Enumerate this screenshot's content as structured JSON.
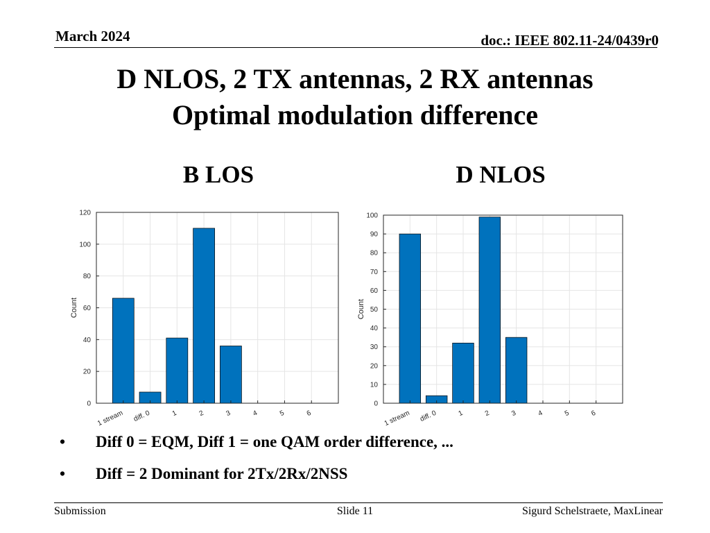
{
  "header": {
    "date": "March 2024",
    "doc": "doc.: IEEE 802.11-24/0439r0"
  },
  "title": {
    "line1": "D NLOS, 2 TX antennas, 2 RX antennas",
    "line2": "Optimal modulation difference"
  },
  "colors": {
    "bar": "#0072BD",
    "grid": "#e5e5e5",
    "axis": "#262626",
    "tick_text": "#262626"
  },
  "chart_data": [
    {
      "type": "bar",
      "title": "B LOS",
      "categories": [
        "1 stream",
        "diff. 0",
        "1",
        "2",
        "3",
        "4",
        "5",
        "6"
      ],
      "values": [
        66,
        7,
        41,
        110,
        36,
        0,
        0,
        0
      ],
      "ylabel": "Count",
      "xlabel": "",
      "ylim": [
        0,
        120
      ],
      "yticks": [
        0,
        20,
        40,
        60,
        80,
        100,
        120
      ],
      "grid": true
    },
    {
      "type": "bar",
      "title": "D NLOS",
      "categories": [
        "1 stream",
        "diff. 0",
        "1",
        "2",
        "3",
        "4",
        "5",
        "6"
      ],
      "values": [
        90,
        4,
        32,
        99,
        35,
        0,
        0,
        0
      ],
      "ylabel": "Count",
      "xlabel": "",
      "ylim": [
        0,
        100
      ],
      "yticks": [
        0,
        10,
        20,
        30,
        40,
        50,
        60,
        70,
        80,
        90,
        100
      ],
      "grid": true
    }
  ],
  "bullets": [
    {
      "marker": "•",
      "text": "Diff 0 = EQM, Diff 1 = one QAM order difference, ..."
    },
    {
      "marker": "•",
      "text": "Diff = 2 Dominant for 2Tx/2Rx/2NSS"
    }
  ],
  "footer": {
    "left": "Submission",
    "center": "Slide 11",
    "right": "Sigurd Schelstraete, MaxLinear"
  }
}
